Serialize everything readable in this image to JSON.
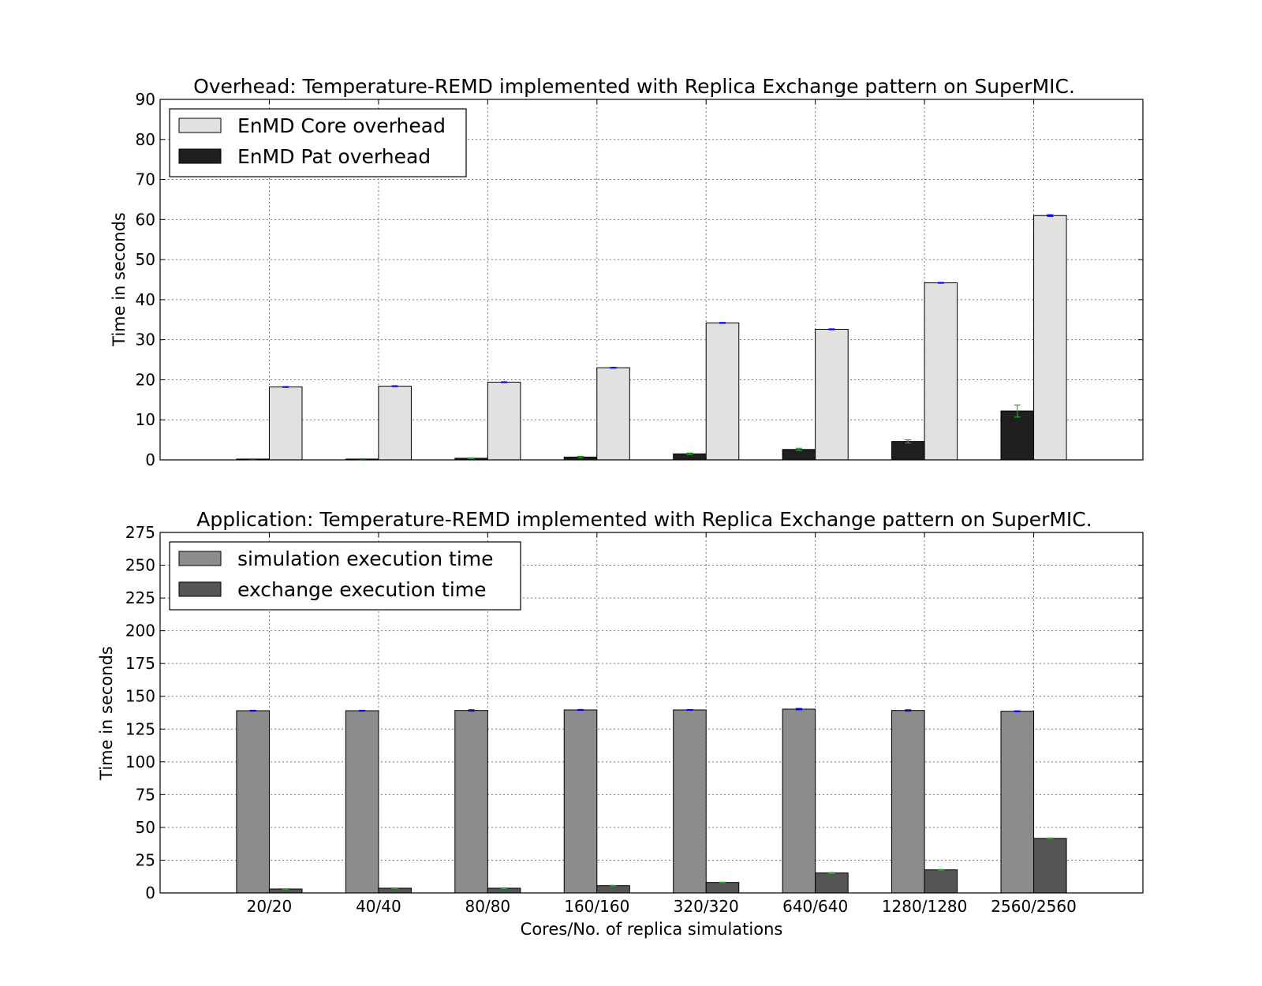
{
  "chart_data": [
    {
      "type": "bar",
      "title": "Overhead: Temperature-REMD implemented with Replica Exchange pattern on SuperMIC.",
      "ylabel": "Time in seconds",
      "xlabel": "",
      "ylim": [
        0,
        90
      ],
      "yticks": [
        "0",
        "10",
        "20",
        "30",
        "40",
        "50",
        "60",
        "70",
        "80",
        "90"
      ],
      "categories": [
        "20/20",
        "40/40",
        "80/80",
        "160/160",
        "320/320",
        "640/640",
        "1280/1280",
        "2560/2560"
      ],
      "show_xticklabels": false,
      "grid": true,
      "legend_position": "upper-left",
      "series": [
        {
          "name": "EnMD Pat overhead",
          "color": "#1f1f1f",
          "errorbar_color": "#2ca02c",
          "values": [
            0.2,
            0.2,
            0.4,
            0.7,
            1.5,
            2.6,
            4.6,
            12.2
          ],
          "errors": [
            0.1,
            0.1,
            0.1,
            0.2,
            0.2,
            0.3,
            0.4,
            1.5
          ]
        },
        {
          "name": "EnMD Core overhead",
          "color": "#e1e1e1",
          "errorbar_color": "#0000ff",
          "values": [
            18.2,
            18.4,
            19.4,
            23.0,
            34.2,
            32.6,
            44.2,
            61.0
          ],
          "errors": [
            0.1,
            0.1,
            0.1,
            0.1,
            0.1,
            0.1,
            0.1,
            0.2
          ]
        }
      ],
      "legend_order": [
        "EnMD Core overhead",
        "EnMD Pat overhead"
      ]
    },
    {
      "type": "bar",
      "title": "Application: Temperature-REMD implemented with Replica Exchange pattern on SuperMIC.",
      "ylabel": "Time in seconds",
      "xlabel": "Cores/No. of replica simulations",
      "ylim": [
        0,
        275
      ],
      "yticks": [
        "0",
        "25",
        "50",
        "75",
        "100",
        "125",
        "150",
        "175",
        "200",
        "225",
        "250",
        "275"
      ],
      "categories": [
        "20/20",
        "40/40",
        "80/80",
        "160/160",
        "320/320",
        "640/640",
        "1280/1280",
        "2560/2560"
      ],
      "show_xticklabels": true,
      "grid": true,
      "legend_position": "upper-left",
      "series": [
        {
          "name": "simulation execution time",
          "color": "#8c8c8c",
          "errorbar_color": "#0000ff",
          "values": [
            139.0,
            139.0,
            139.2,
            139.6,
            139.6,
            140.2,
            139.2,
            138.6
          ],
          "errors": [
            0.3,
            0.3,
            0.5,
            0.3,
            0.3,
            0.5,
            0.5,
            0.3
          ]
        },
        {
          "name": "exchange execution time",
          "color": "#555555",
          "errorbar_color": "#2ca02c",
          "values": [
            3.0,
            3.6,
            3.6,
            5.6,
            8.0,
            15.2,
            17.6,
            41.6
          ],
          "errors": [
            0.2,
            0.2,
            0.2,
            0.2,
            0.2,
            0.3,
            0.3,
            0.3
          ]
        }
      ],
      "legend_order": [
        "simulation execution time",
        "exchange execution time"
      ]
    }
  ]
}
